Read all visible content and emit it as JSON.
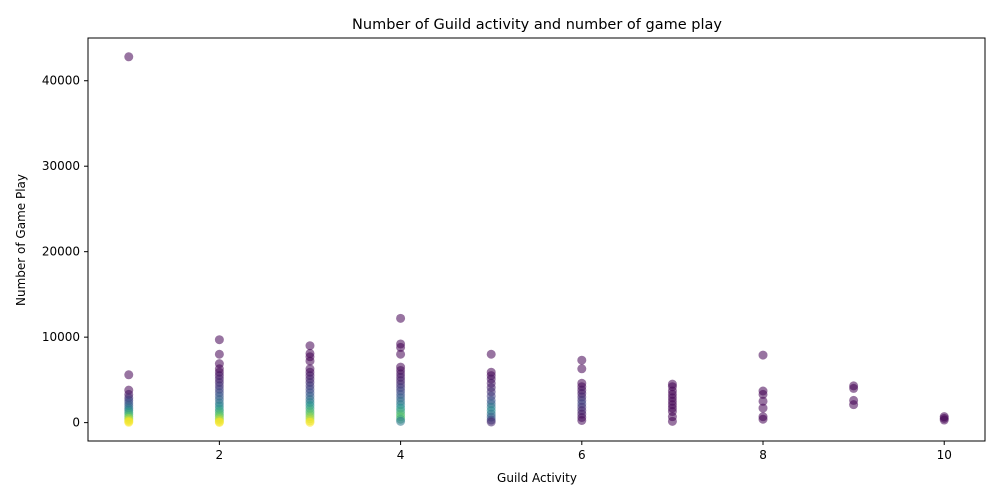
{
  "chart_data": {
    "type": "scatter",
    "title": "Number of Guild activity and number of game play",
    "xlabel": "Guild Activity",
    "ylabel": "Number of Game Play",
    "xlim": [
      0.55,
      10.45
    ],
    "ylim": [
      -2150,
      45000
    ],
    "xticks": [
      2,
      4,
      6,
      8,
      10
    ],
    "yticks": [
      0,
      10000,
      20000,
      30000,
      40000
    ],
    "grid": false,
    "legend": "none",
    "marker_alpha": 0.55,
    "colormap": "viridis",
    "points": [
      {
        "x": 1,
        "y": 42800,
        "c": 0
      },
      {
        "x": 1,
        "y": 5600,
        "c": 0
      },
      {
        "x": 1,
        "y": 3800,
        "c": 0
      },
      {
        "x": 1,
        "y": 3300,
        "c": 0.05
      },
      {
        "x": 1,
        "y": 2900,
        "c": 0.12
      },
      {
        "x": 1,
        "y": 2600,
        "c": 0.2
      },
      {
        "x": 1,
        "y": 2300,
        "c": 0.25
      },
      {
        "x": 1,
        "y": 2000,
        "c": 0.3
      },
      {
        "x": 1,
        "y": 1700,
        "c": 0.38
      },
      {
        "x": 1,
        "y": 1450,
        "c": 0.45
      },
      {
        "x": 1,
        "y": 1200,
        "c": 0.55
      },
      {
        "x": 1,
        "y": 950,
        "c": 0.65
      },
      {
        "x": 1,
        "y": 700,
        "c": 0.75
      },
      {
        "x": 1,
        "y": 500,
        "c": 0.85
      },
      {
        "x": 1,
        "y": 300,
        "c": 0.92
      },
      {
        "x": 1,
        "y": 150,
        "c": 0.97
      },
      {
        "x": 1,
        "y": 40,
        "c": 1
      },
      {
        "x": 2,
        "y": 9700,
        "c": 0
      },
      {
        "x": 2,
        "y": 8000,
        "c": 0
      },
      {
        "x": 2,
        "y": 6900,
        "c": 0
      },
      {
        "x": 2,
        "y": 6300,
        "c": 0
      },
      {
        "x": 2,
        "y": 5900,
        "c": 0.02
      },
      {
        "x": 2,
        "y": 5500,
        "c": 0.05
      },
      {
        "x": 2,
        "y": 5100,
        "c": 0.08
      },
      {
        "x": 2,
        "y": 4700,
        "c": 0.1
      },
      {
        "x": 2,
        "y": 4300,
        "c": 0.14
      },
      {
        "x": 2,
        "y": 3900,
        "c": 0.18
      },
      {
        "x": 2,
        "y": 3500,
        "c": 0.22
      },
      {
        "x": 2,
        "y": 3100,
        "c": 0.27
      },
      {
        "x": 2,
        "y": 2700,
        "c": 0.32
      },
      {
        "x": 2,
        "y": 2300,
        "c": 0.38
      },
      {
        "x": 2,
        "y": 1950,
        "c": 0.44
      },
      {
        "x": 2,
        "y": 1600,
        "c": 0.52
      },
      {
        "x": 2,
        "y": 1300,
        "c": 0.6
      },
      {
        "x": 2,
        "y": 1000,
        "c": 0.68
      },
      {
        "x": 2,
        "y": 750,
        "c": 0.76
      },
      {
        "x": 2,
        "y": 500,
        "c": 0.84
      },
      {
        "x": 2,
        "y": 300,
        "c": 0.9
      },
      {
        "x": 2,
        "y": 120,
        "c": 0.96
      },
      {
        "x": 2,
        "y": 20,
        "c": 1
      },
      {
        "x": 3,
        "y": 9000,
        "c": 0
      },
      {
        "x": 3,
        "y": 8100,
        "c": 0
      },
      {
        "x": 3,
        "y": 7700,
        "c": 0
      },
      {
        "x": 3,
        "y": 7200,
        "c": 0
      },
      {
        "x": 3,
        "y": 6300,
        "c": 0.02
      },
      {
        "x": 3,
        "y": 5900,
        "c": 0.03
      },
      {
        "x": 3,
        "y": 5500,
        "c": 0.06
      },
      {
        "x": 3,
        "y": 5100,
        "c": 0.09
      },
      {
        "x": 3,
        "y": 4700,
        "c": 0.12
      },
      {
        "x": 3,
        "y": 4300,
        "c": 0.16
      },
      {
        "x": 3,
        "y": 3900,
        "c": 0.2
      },
      {
        "x": 3,
        "y": 3500,
        "c": 0.24
      },
      {
        "x": 3,
        "y": 3100,
        "c": 0.3
      },
      {
        "x": 3,
        "y": 2700,
        "c": 0.36
      },
      {
        "x": 3,
        "y": 2350,
        "c": 0.42
      },
      {
        "x": 3,
        "y": 2000,
        "c": 0.5
      },
      {
        "x": 3,
        "y": 1650,
        "c": 0.58
      },
      {
        "x": 3,
        "y": 1300,
        "c": 0.66
      },
      {
        "x": 3,
        "y": 1000,
        "c": 0.74
      },
      {
        "x": 3,
        "y": 700,
        "c": 0.82
      },
      {
        "x": 3,
        "y": 450,
        "c": 0.88
      },
      {
        "x": 3,
        "y": 200,
        "c": 0.94
      },
      {
        "x": 3,
        "y": 30,
        "c": 1
      },
      {
        "x": 4,
        "y": 12200,
        "c": 0
      },
      {
        "x": 4,
        "y": 9200,
        "c": 0
      },
      {
        "x": 4,
        "y": 8800,
        "c": 0
      },
      {
        "x": 4,
        "y": 8000,
        "c": 0
      },
      {
        "x": 4,
        "y": 6500,
        "c": 0
      },
      {
        "x": 4,
        "y": 6100,
        "c": 0.02
      },
      {
        "x": 4,
        "y": 5700,
        "c": 0.04
      },
      {
        "x": 4,
        "y": 5300,
        "c": 0.06
      },
      {
        "x": 4,
        "y": 4900,
        "c": 0.08
      },
      {
        "x": 4,
        "y": 4500,
        "c": 0.12
      },
      {
        "x": 4,
        "y": 4100,
        "c": 0.16
      },
      {
        "x": 4,
        "y": 3700,
        "c": 0.2
      },
      {
        "x": 4,
        "y": 3300,
        "c": 0.25
      },
      {
        "x": 4,
        "y": 2900,
        "c": 0.3
      },
      {
        "x": 4,
        "y": 2500,
        "c": 0.36
      },
      {
        "x": 4,
        "y": 2100,
        "c": 0.42
      },
      {
        "x": 4,
        "y": 1700,
        "c": 0.5
      },
      {
        "x": 4,
        "y": 1350,
        "c": 0.58
      },
      {
        "x": 4,
        "y": 1000,
        "c": 0.66
      },
      {
        "x": 4,
        "y": 700,
        "c": 0.72
      },
      {
        "x": 4,
        "y": 400,
        "c": 0.6
      },
      {
        "x": 4,
        "y": 150,
        "c": 0.4
      },
      {
        "x": 5,
        "y": 8000,
        "c": 0
      },
      {
        "x": 5,
        "y": 5900,
        "c": 0
      },
      {
        "x": 5,
        "y": 5500,
        "c": 0.02
      },
      {
        "x": 5,
        "y": 5100,
        "c": 0.04
      },
      {
        "x": 5,
        "y": 4600,
        "c": 0.06
      },
      {
        "x": 5,
        "y": 4100,
        "c": 0.09
      },
      {
        "x": 5,
        "y": 3600,
        "c": 0.13
      },
      {
        "x": 5,
        "y": 3100,
        "c": 0.18
      },
      {
        "x": 5,
        "y": 2600,
        "c": 0.24
      },
      {
        "x": 5,
        "y": 2200,
        "c": 0.32
      },
      {
        "x": 5,
        "y": 1800,
        "c": 0.4
      },
      {
        "x": 5,
        "y": 1400,
        "c": 0.46
      },
      {
        "x": 5,
        "y": 1000,
        "c": 0.38
      },
      {
        "x": 5,
        "y": 650,
        "c": 0.3
      },
      {
        "x": 5,
        "y": 300,
        "c": 0.2
      },
      {
        "x": 5,
        "y": 80,
        "c": 0.1
      },
      {
        "x": 6,
        "y": 7300,
        "c": 0
      },
      {
        "x": 6,
        "y": 6300,
        "c": 0
      },
      {
        "x": 6,
        "y": 4600,
        "c": 0
      },
      {
        "x": 6,
        "y": 4200,
        "c": 0.02
      },
      {
        "x": 6,
        "y": 3800,
        "c": 0.04
      },
      {
        "x": 6,
        "y": 3400,
        "c": 0.07
      },
      {
        "x": 6,
        "y": 3000,
        "c": 0.1
      },
      {
        "x": 6,
        "y": 2600,
        "c": 0.15
      },
      {
        "x": 6,
        "y": 2200,
        "c": 0.2
      },
      {
        "x": 6,
        "y": 1800,
        "c": 0.14
      },
      {
        "x": 6,
        "y": 1400,
        "c": 0.1
      },
      {
        "x": 6,
        "y": 1000,
        "c": 0.07
      },
      {
        "x": 6,
        "y": 600,
        "c": 0.04
      },
      {
        "x": 6,
        "y": 250,
        "c": 0.02
      },
      {
        "x": 7,
        "y": 4500,
        "c": 0
      },
      {
        "x": 7,
        "y": 4200,
        "c": 0
      },
      {
        "x": 7,
        "y": 3700,
        "c": 0
      },
      {
        "x": 7,
        "y": 3300,
        "c": 0
      },
      {
        "x": 7,
        "y": 2900,
        "c": 0
      },
      {
        "x": 7,
        "y": 2500,
        "c": 0
      },
      {
        "x": 7,
        "y": 2100,
        "c": 0
      },
      {
        "x": 7,
        "y": 1700,
        "c": 0
      },
      {
        "x": 7,
        "y": 1300,
        "c": 0
      },
      {
        "x": 7,
        "y": 700,
        "c": 0
      },
      {
        "x": 7,
        "y": 150,
        "c": 0
      },
      {
        "x": 8,
        "y": 7900,
        "c": 0
      },
      {
        "x": 8,
        "y": 3700,
        "c": 0
      },
      {
        "x": 8,
        "y": 3300,
        "c": 0
      },
      {
        "x": 8,
        "y": 2500,
        "c": 0
      },
      {
        "x": 8,
        "y": 1700,
        "c": 0
      },
      {
        "x": 8,
        "y": 700,
        "c": 0
      },
      {
        "x": 8,
        "y": 400,
        "c": 0
      },
      {
        "x": 9,
        "y": 4300,
        "c": 0
      },
      {
        "x": 9,
        "y": 4000,
        "c": 0
      },
      {
        "x": 9,
        "y": 2600,
        "c": 0
      },
      {
        "x": 9,
        "y": 2100,
        "c": 0
      },
      {
        "x": 10,
        "y": 700,
        "c": 0
      },
      {
        "x": 10,
        "y": 500,
        "c": 0
      },
      {
        "x": 10,
        "y": 300,
        "c": 0
      }
    ]
  }
}
